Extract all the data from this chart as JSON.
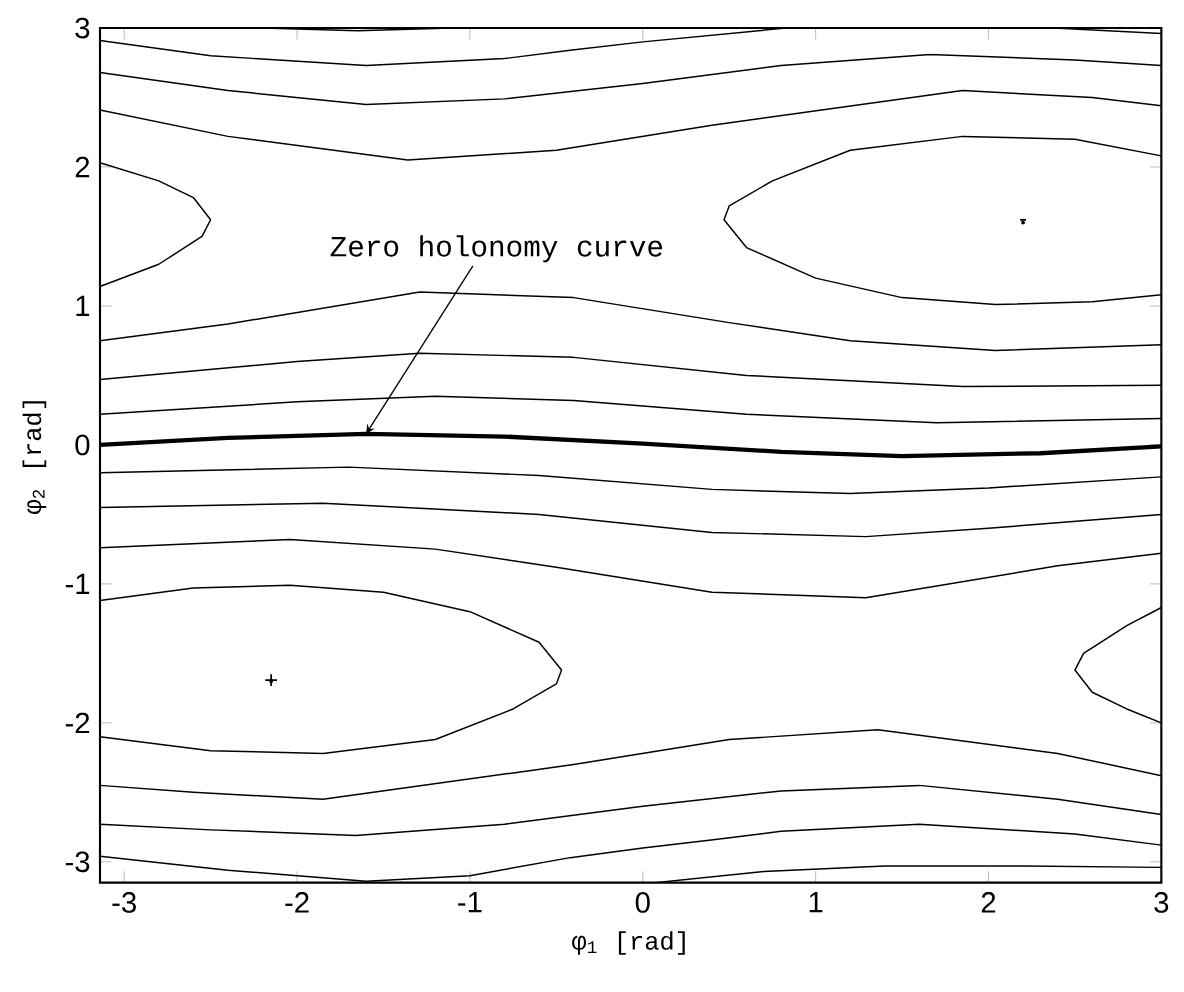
{
  "chart_data": {
    "type": "line",
    "xlabel": "φ$_{1}$ [rad]",
    "ylabel": "φ$_{2}$ [rad]",
    "xlim": [
      -3.14,
      3.0
    ],
    "ylim": [
      -3.15,
      3.0
    ],
    "xticks": [
      -3,
      -2,
      -1,
      0,
      1,
      2,
      3
    ],
    "yticks": [
      -3,
      -2,
      -1,
      0,
      1,
      2,
      3
    ],
    "grid": false,
    "marker": "none",
    "line_style": "solid",
    "annotations": [
      {
        "text": "Zero holonomy curve",
        "x": -1.6,
        "y": 0.08
      }
    ],
    "series": [
      {
        "type": "scatter",
        "x": [
          -2.15
        ],
        "values": [
          -1.7
        ],
        "value_labels": [
          "+"
        ],
        "color": "#000000"
      },
      {
        "type": "scatter",
        "x": [
          2.2
        ],
        "values": [
          1.6
        ],
        "value_labels": [
          "-"
        ],
        "color": "#000000"
      },
      {
        "color": "#000000",
        "x": [
          -3.14,
          -2.5,
          -1.6,
          -0.8,
          -0.42,
          0,
          0.83
        ],
        "values": [
          2.91,
          2.8,
          2.73,
          2.78,
          2.84,
          2.9,
          3.0
        ]
      },
      {
        "color": "#000000",
        "x": [
          -2.2,
          -1.65,
          -1.1
        ],
        "values": [
          3.0,
          2.98,
          3.0
        ]
      },
      {
        "color": "#000000",
        "x": [
          2.38,
          3.0
        ],
        "values": [
          3.0,
          2.96
        ]
      },
      {
        "color": "#000000",
        "x": [
          -3.14,
          -2.4,
          -1.6,
          -0.8,
          0,
          0.8,
          1.66,
          2.5,
          3.0
        ],
        "values": [
          2.68,
          2.55,
          2.45,
          2.49,
          2.6,
          2.73,
          2.81,
          2.77,
          2.73
        ]
      },
      {
        "color": "#000000",
        "x": [
          -3.14,
          -2.4,
          -1.36,
          -0.5,
          0.4,
          1.85,
          2.6,
          3.0
        ],
        "values": [
          2.41,
          2.22,
          2.05,
          2.12,
          2.3,
          2.55,
          2.5,
          2.44
        ]
      },
      {
        "color": "#000000",
        "x": [
          3.0,
          2.5,
          1.85,
          1.2,
          0.75,
          0.5,
          0.47,
          0.6,
          1.0,
          1.5,
          2.04,
          2.6,
          3.0
        ],
        "values": [
          2.08,
          2.2,
          2.22,
          2.12,
          1.9,
          1.72,
          1.62,
          1.42,
          1.2,
          1.06,
          1.01,
          1.03,
          1.08
        ]
      },
      {
        "color": "#000000",
        "x": [
          -3.14,
          -2.8,
          -2.6,
          -2.5,
          -2.55,
          -2.8,
          -3.14
        ],
        "values": [
          2.03,
          1.9,
          1.78,
          1.62,
          1.5,
          1.3,
          1.14
        ]
      },
      {
        "color": "#000000",
        "x": [
          -3.14,
          -2.4,
          -1.29,
          -0.4,
          0.5,
          1.2,
          2.04,
          3.0
        ],
        "values": [
          0.75,
          0.87,
          1.1,
          1.06,
          0.88,
          0.75,
          0.68,
          0.72
        ]
      },
      {
        "color": "#000000",
        "x": [
          -3.14,
          -2,
          -1.29,
          -0.4,
          0.6,
          1.85,
          3.0
        ],
        "values": [
          0.47,
          0.6,
          0.66,
          0.63,
          0.5,
          0.42,
          0.43
        ]
      },
      {
        "color": "#000000",
        "x": [
          -3.14,
          -2,
          -1.2,
          -0.4,
          0.6,
          1.7,
          3.0
        ],
        "values": [
          0.22,
          0.31,
          0.35,
          0.32,
          0.22,
          0.16,
          0.19
        ]
      },
      {
        "color": "#000000",
        "x": [
          -3.14,
          -2.4,
          -1.6,
          -0.8,
          0,
          0.8,
          1.5,
          2.3,
          3.0
        ],
        "values": [
          0,
          0.05,
          0.08,
          0.06,
          0.01,
          -0.05,
          -0.08,
          -0.06,
          -0.01
        ]
      },
      {
        "color": "#000000",
        "x": [
          -3.14,
          -1.7,
          -0.6,
          0.4,
          1.2,
          2,
          3.0
        ],
        "values": [
          -0.2,
          -0.16,
          -0.22,
          -0.32,
          -0.35,
          -0.31,
          -0.23
        ]
      },
      {
        "color": "#000000",
        "x": [
          -3.14,
          -1.85,
          -0.6,
          0.4,
          1.29,
          2,
          3.0
        ],
        "values": [
          -0.45,
          -0.42,
          -0.5,
          -0.63,
          -0.66,
          -0.6,
          -0.5
        ]
      },
      {
        "color": "#000000",
        "x": [
          -3.14,
          -2.04,
          -1.2,
          -0.5,
          0.4,
          1.29,
          2.4,
          3.0
        ],
        "values": [
          -0.74,
          -0.68,
          -0.75,
          -0.88,
          -1.06,
          -1.1,
          -0.87,
          -0.78
        ]
      },
      {
        "color": "#000000",
        "x": [
          -3.14,
          -2.6,
          -2.04,
          -1.5,
          -1.0,
          -0.6,
          -0.47,
          -0.5,
          -0.75,
          -1.2,
          -1.85,
          -2.5,
          -3.14
        ],
        "values": [
          -1.12,
          -1.03,
          -1.01,
          -1.06,
          -1.2,
          -1.42,
          -1.62,
          -1.72,
          -1.9,
          -2.12,
          -2.22,
          -2.2,
          -2.1
        ]
      },
      {
        "color": "#000000",
        "x": [
          3.0,
          2.8,
          2.55,
          2.5,
          2.6,
          2.8,
          3.0
        ],
        "values": [
          -1.17,
          -1.3,
          -1.5,
          -1.62,
          -1.78,
          -1.9,
          -2.0
        ]
      },
      {
        "color": "#000000",
        "x": [
          -3.14,
          -2.6,
          -1.85,
          -0.4,
          0.5,
          1.36,
          2.4,
          3.0
        ],
        "values": [
          -2.45,
          -2.5,
          -2.55,
          -2.3,
          -2.12,
          -2.05,
          -2.22,
          -2.38
        ]
      },
      {
        "color": "#000000",
        "x": [
          -3.14,
          -2.5,
          -1.66,
          -0.8,
          0,
          0.8,
          1.6,
          2.4,
          3.0
        ],
        "values": [
          -2.73,
          -2.77,
          -2.81,
          -2.73,
          -2.6,
          -2.49,
          -2.45,
          -2.55,
          -2.66
        ]
      },
      {
        "color": "#000000",
        "x": [
          -3.14,
          -2.4,
          -1.6,
          -1.0,
          -0.42,
          0,
          0.42,
          0.8,
          1.6,
          2.5,
          3.0
        ],
        "values": [
          -2.96,
          -3.06,
          -3.14,
          -3.1,
          -2.97,
          -2.9,
          -2.84,
          -2.78,
          -2.73,
          -2.8,
          -2.88
        ]
      },
      {
        "color": "#000000",
        "x": [
          0.07,
          0.7,
          1.4,
          2.2,
          3.0
        ],
        "values": [
          -3.15,
          -3.07,
          -3.03,
          -3.03,
          -3.04
        ]
      }
    ]
  }
}
